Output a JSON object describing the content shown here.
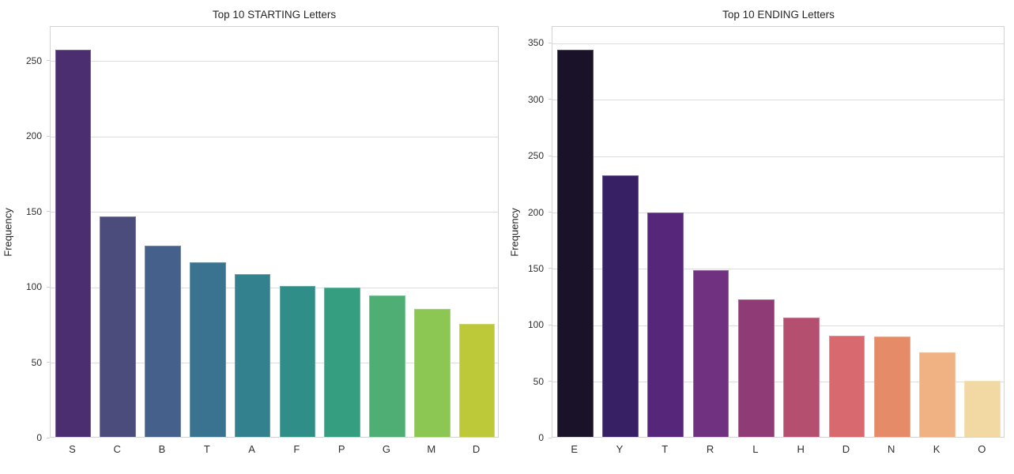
{
  "figure_style": {
    "background": "#ffffff",
    "grid_color": "#dcdcdc",
    "spine_color": "#d4d4d4",
    "title_color": "#262626",
    "tick_label_color": "#303030"
  },
  "chart_data": [
    {
      "type": "bar",
      "title": "Top 10 STARTING Letters",
      "xlabel": "",
      "ylabel": "Frequency",
      "palette": "viridis",
      "grid": true,
      "legend": null,
      "categories": [
        "S",
        "C",
        "B",
        "T",
        "A",
        "F",
        "P",
        "G",
        "M",
        "D"
      ],
      "values": [
        257,
        146,
        127,
        116,
        108,
        100,
        99,
        94,
        85,
        75
      ],
      "colors": [
        "#4a2e6f",
        "#4b4c7c",
        "#45608b",
        "#3a7390",
        "#33808e",
        "#2f8e87",
        "#369e80",
        "#4fae73",
        "#8cc653",
        "#bdc939"
      ],
      "yticks": [
        0,
        50,
        100,
        150,
        200,
        250
      ],
      "ylim": [
        0,
        273
      ]
    },
    {
      "type": "bar",
      "title": "Top 10 ENDING Letters",
      "xlabel": "",
      "ylabel": "Frequency",
      "palette": "magma",
      "grid": true,
      "legend": null,
      "categories": [
        "E",
        "Y",
        "T",
        "R",
        "L",
        "H",
        "D",
        "N",
        "K",
        "O"
      ],
      "values": [
        343,
        232,
        199,
        148,
        122,
        106,
        90,
        89,
        75,
        50
      ],
      "colors": [
        "#1a1228",
        "#372064",
        "#55267a",
        "#6f3180",
        "#8f3b76",
        "#b44f70",
        "#d7696f",
        "#e68b67",
        "#f0b183",
        "#f2d9a4"
      ],
      "yticks": [
        0,
        50,
        100,
        150,
        200,
        250,
        300,
        350
      ],
      "ylim": [
        0,
        365
      ]
    }
  ]
}
